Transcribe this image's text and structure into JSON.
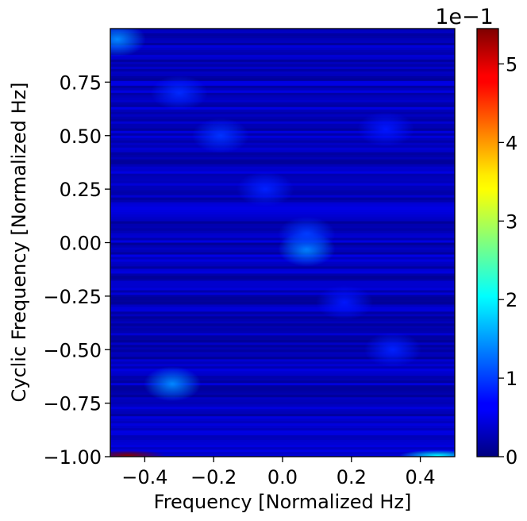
{
  "chart_data": {
    "type": "heatmap",
    "title": "",
    "xlabel": "Frequency [Normalized Hz]",
    "ylabel": "Cyclic Frequency [Normalized Hz]",
    "xlim": [
      -0.5,
      0.5
    ],
    "ylim": [
      -1.0,
      1.0
    ],
    "x_ticks": [
      -0.4,
      -0.2,
      0.0,
      0.2,
      0.4
    ],
    "x_tick_labels": [
      "−0.4",
      "−0.2",
      "0.0",
      "0.2",
      "0.4"
    ],
    "y_ticks": [
      -1.0,
      -0.75,
      -0.5,
      -0.25,
      0.0,
      0.25,
      0.5,
      0.75
    ],
    "y_tick_labels": [
      "−1.00",
      "−0.75",
      "−0.50",
      "−0.25",
      "0.00",
      "0.25",
      "0.50",
      "0.75"
    ],
    "colorbar": {
      "colormap": "jet",
      "range": [
        0,
        5.45
      ],
      "ticks": [
        0,
        1,
        2,
        3,
        4,
        5
      ],
      "tick_labels": [
        "0",
        "1",
        "2",
        "3",
        "4",
        "5"
      ],
      "offset_text": "1e−1"
    },
    "background_level": 0.35,
    "features": [
      {
        "x": 0.07,
        "y": -0.03,
        "value": 1.4
      },
      {
        "x": 0.07,
        "y": 0.04,
        "value": 1.0
      },
      {
        "x": -0.3,
        "y": 0.7,
        "value": 0.9
      },
      {
        "x": -0.18,
        "y": 0.5,
        "value": 0.95
      },
      {
        "x": 0.3,
        "y": 0.53,
        "value": 0.8
      },
      {
        "x": -0.05,
        "y": 0.25,
        "value": 0.85
      },
      {
        "x": 0.18,
        "y": -0.28,
        "value": 0.8
      },
      {
        "x": 0.32,
        "y": -0.5,
        "value": 0.85
      },
      {
        "x": -0.48,
        "y": 0.95,
        "value": 1.4
      },
      {
        "x": -0.32,
        "y": -0.66,
        "value": 1.4
      },
      {
        "x": -0.45,
        "y": -0.995,
        "value": 5.45
      },
      {
        "x": 0.45,
        "y": -0.995,
        "value": 2.0
      }
    ]
  }
}
